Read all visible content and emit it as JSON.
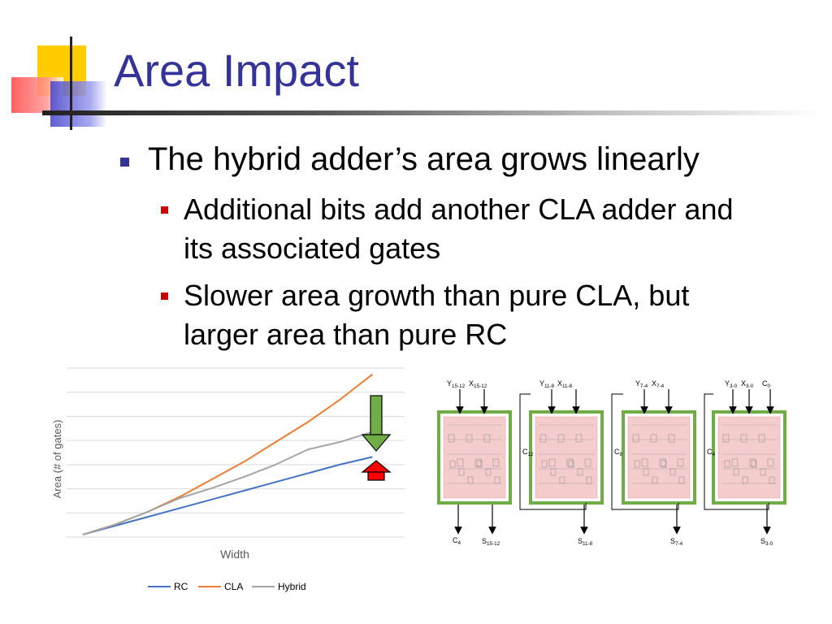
{
  "slide": {
    "title": "Area Impact",
    "bullets": [
      {
        "text": "The hybrid adder’s area grows linearly",
        "sub": [
          {
            "lines": [
              "Additional bits add another CLA adder and",
              "its associated gates"
            ]
          },
          {
            "lines": [
              "Slower area growth than pure CLA, but",
              "larger area than pure RC"
            ]
          }
        ]
      }
    ]
  },
  "colors": {
    "title": "#333399",
    "rc": "#4472c4",
    "cla": "#ed7d31",
    "hybrid": "#a5a5a5",
    "down_arrow": "#70ad47",
    "up_arrow": "#ff0000",
    "adder_border": "#70ad47",
    "adder_fill": "#f4cccc"
  },
  "chart_data": {
    "type": "line",
    "xlabel": "Width",
    "ylabel": "Area (# of gates)",
    "x": [
      0,
      1,
      2,
      3,
      4,
      5,
      6,
      7,
      8,
      9
    ],
    "xlim": [
      0,
      10
    ],
    "ylim": [
      0,
      6.75
    ],
    "grid": true,
    "legend_position": "bottom",
    "series": [
      {
        "name": "RC",
        "values": [
          0.1,
          0.45,
          0.8,
          1.15,
          1.5,
          1.85,
          2.2,
          2.55,
          2.9,
          3.2
        ]
      },
      {
        "name": "CLA",
        "values": [
          0.1,
          0.5,
          1.0,
          1.6,
          2.3,
          3.0,
          3.8,
          4.6,
          5.5,
          6.5
        ]
      },
      {
        "name": "Hybrid",
        "values": [
          0.1,
          0.5,
          1.0,
          1.55,
          1.95,
          2.4,
          2.9,
          3.5,
          3.8,
          4.2
        ]
      }
    ]
  },
  "diagram": {
    "blocks": [
      {
        "inputs": [
          {
            "main": "Y",
            "sub": "15-12"
          },
          {
            "main": "X",
            "sub": "15-12"
          }
        ],
        "sum": {
          "main": "S",
          "sub": "15-12"
        }
      },
      {
        "inputs": [
          {
            "main": "Y",
            "sub": "11-8"
          },
          {
            "main": "X",
            "sub": "11-8"
          }
        ],
        "sum": {
          "main": "S",
          "sub": "11-8"
        }
      },
      {
        "inputs": [
          {
            "main": "Y",
            "sub": "7-4"
          },
          {
            "main": "X",
            "sub": "7-4"
          }
        ],
        "sum": {
          "main": "S",
          "sub": "7-4"
        }
      },
      {
        "inputs": [
          {
            "main": "Y",
            "sub": "3-0"
          },
          {
            "main": "X",
            "sub": "3-0"
          },
          {
            "main": "C",
            "sub": "0"
          }
        ],
        "sum": {
          "main": "S",
          "sub": "3-0"
        }
      }
    ],
    "carries": [
      {
        "main": "C",
        "sub": "12"
      },
      {
        "main": "C",
        "sub": "8"
      },
      {
        "main": "C",
        "sub": "4"
      }
    ],
    "carry_out": {
      "main": "C",
      "sub": "4"
    }
  }
}
